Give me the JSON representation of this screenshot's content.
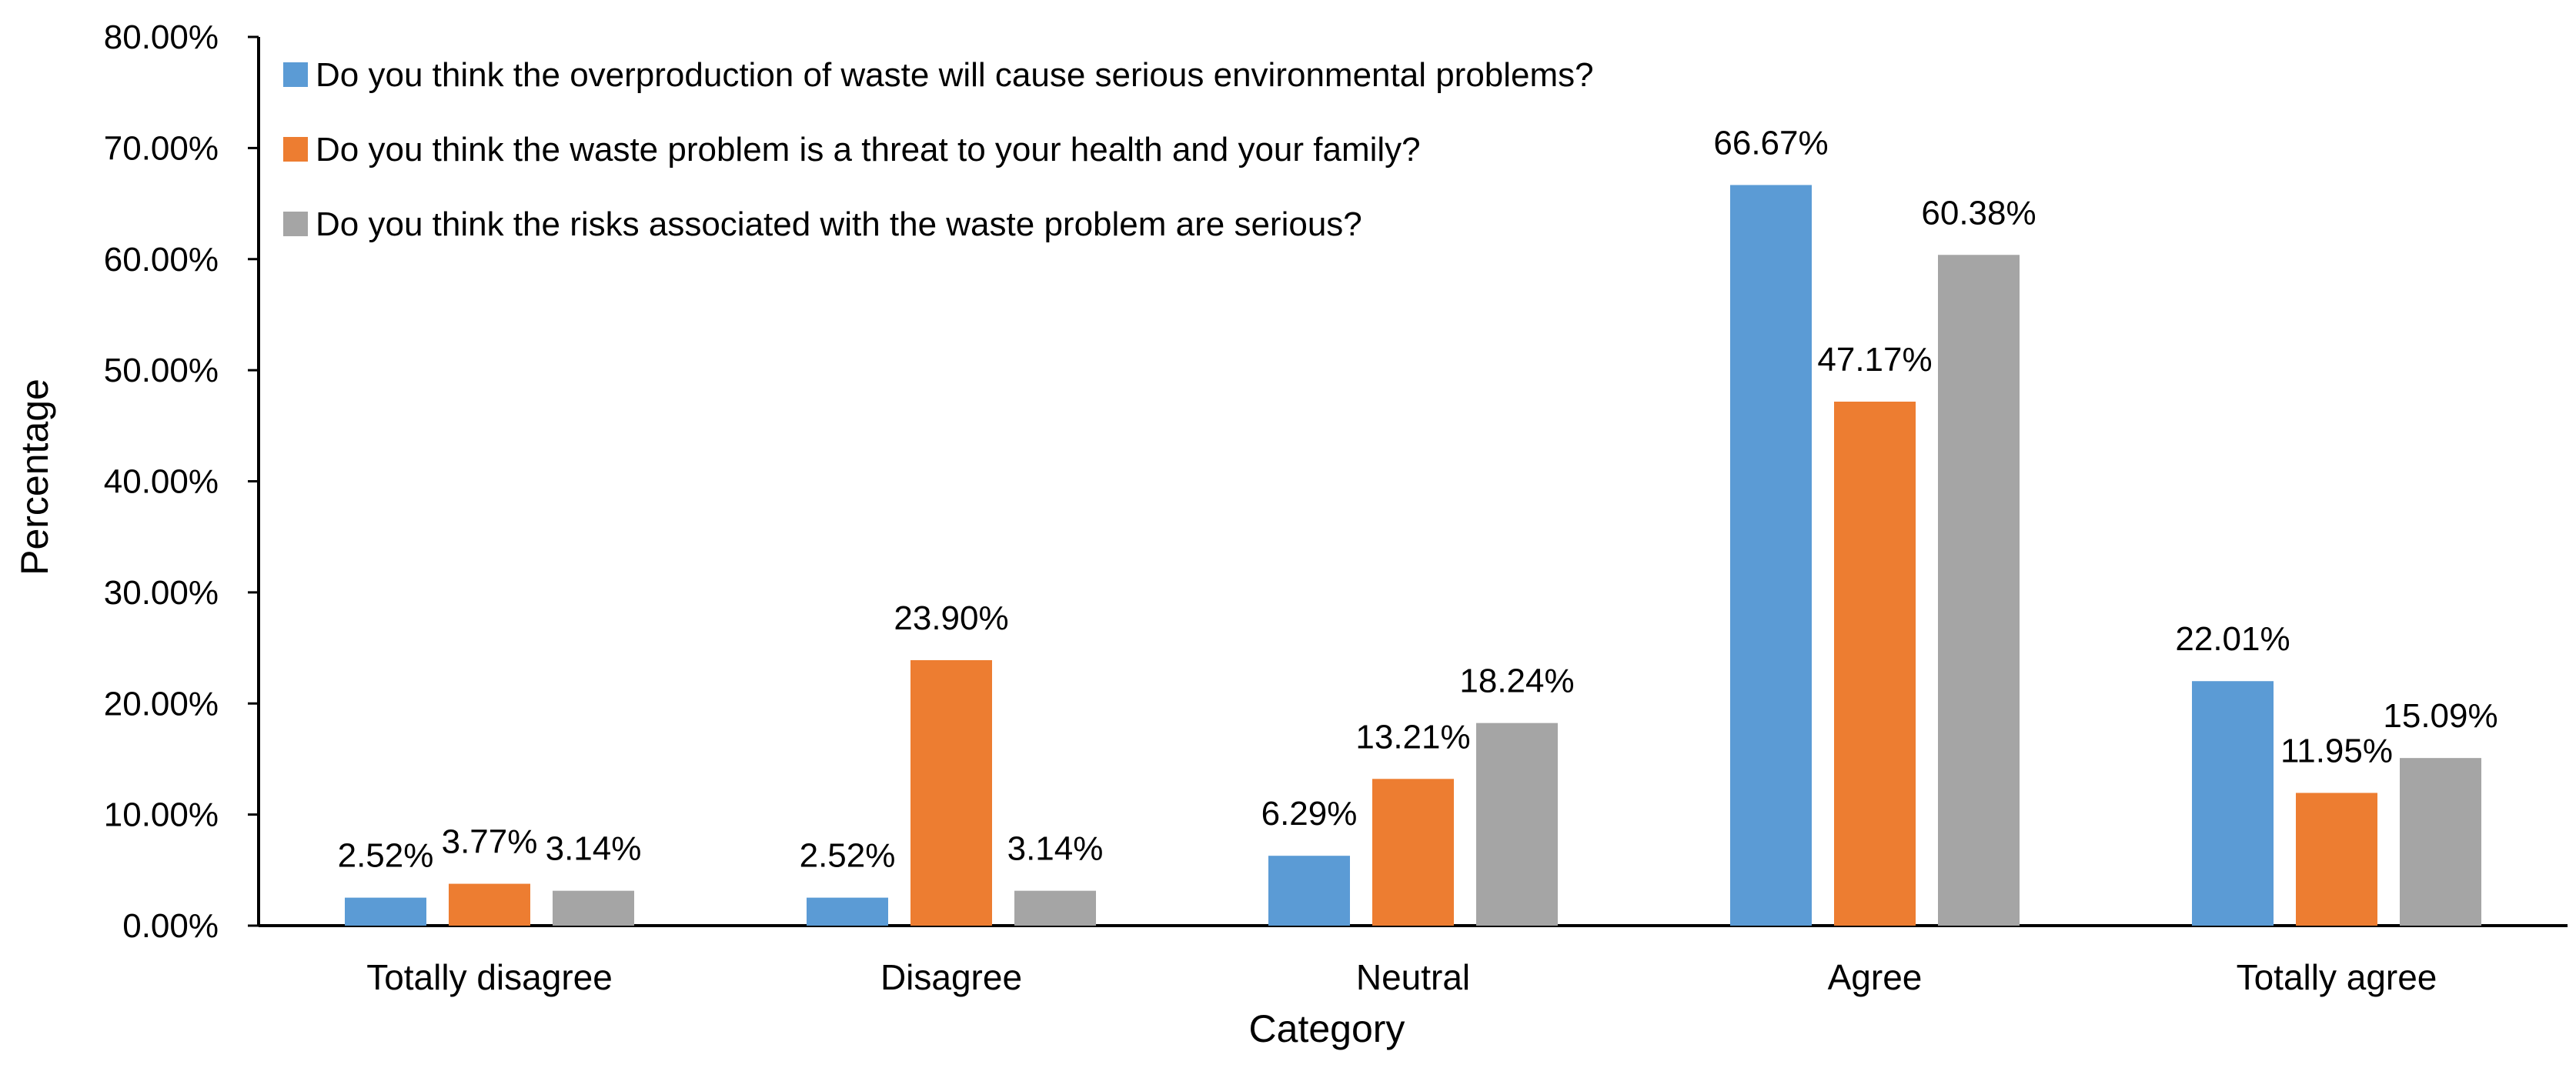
{
  "chart_data": {
    "type": "bar",
    "title": "",
    "xlabel": "Category",
    "ylabel": "Percentage",
    "ylim": [
      0,
      80
    ],
    "y_ticks": [
      "0.00%",
      "10.00%",
      "20.00%",
      "30.00%",
      "40.00%",
      "50.00%",
      "60.00%",
      "70.00%",
      "80.00%"
    ],
    "y_tick_values": [
      0,
      10,
      20,
      30,
      40,
      50,
      60,
      70,
      80
    ],
    "categories": [
      "Totally disagree",
      "Disagree",
      "Neutral",
      "Agree",
      "Totally agree"
    ],
    "legend_position": "top-left",
    "grid": false,
    "series": [
      {
        "name": "Do you think the overproduction of waste will cause serious environmental problems?",
        "color": "#5B9BD5",
        "values": [
          2.52,
          2.52,
          6.29,
          66.67,
          22.01
        ],
        "labels": [
          "2.52%",
          "2.52%",
          "6.29%",
          "66.67%",
          "22.01%"
        ]
      },
      {
        "name": "Do you think the waste problem is a threat to your health and your family?",
        "color": "#ED7D31",
        "values": [
          3.77,
          23.9,
          13.21,
          47.17,
          11.95
        ],
        "labels": [
          "3.77%",
          "23.90%",
          "13.21%",
          "47.17%",
          "11.95%"
        ]
      },
      {
        "name": "Do you think the risks associated with the waste problem are serious?",
        "color": "#A5A5A5",
        "values": [
          3.14,
          3.14,
          18.24,
          60.38,
          15.09
        ],
        "labels": [
          "3.14%",
          "3.14%",
          "18.24%",
          "60.38%",
          "15.09%"
        ]
      }
    ]
  }
}
